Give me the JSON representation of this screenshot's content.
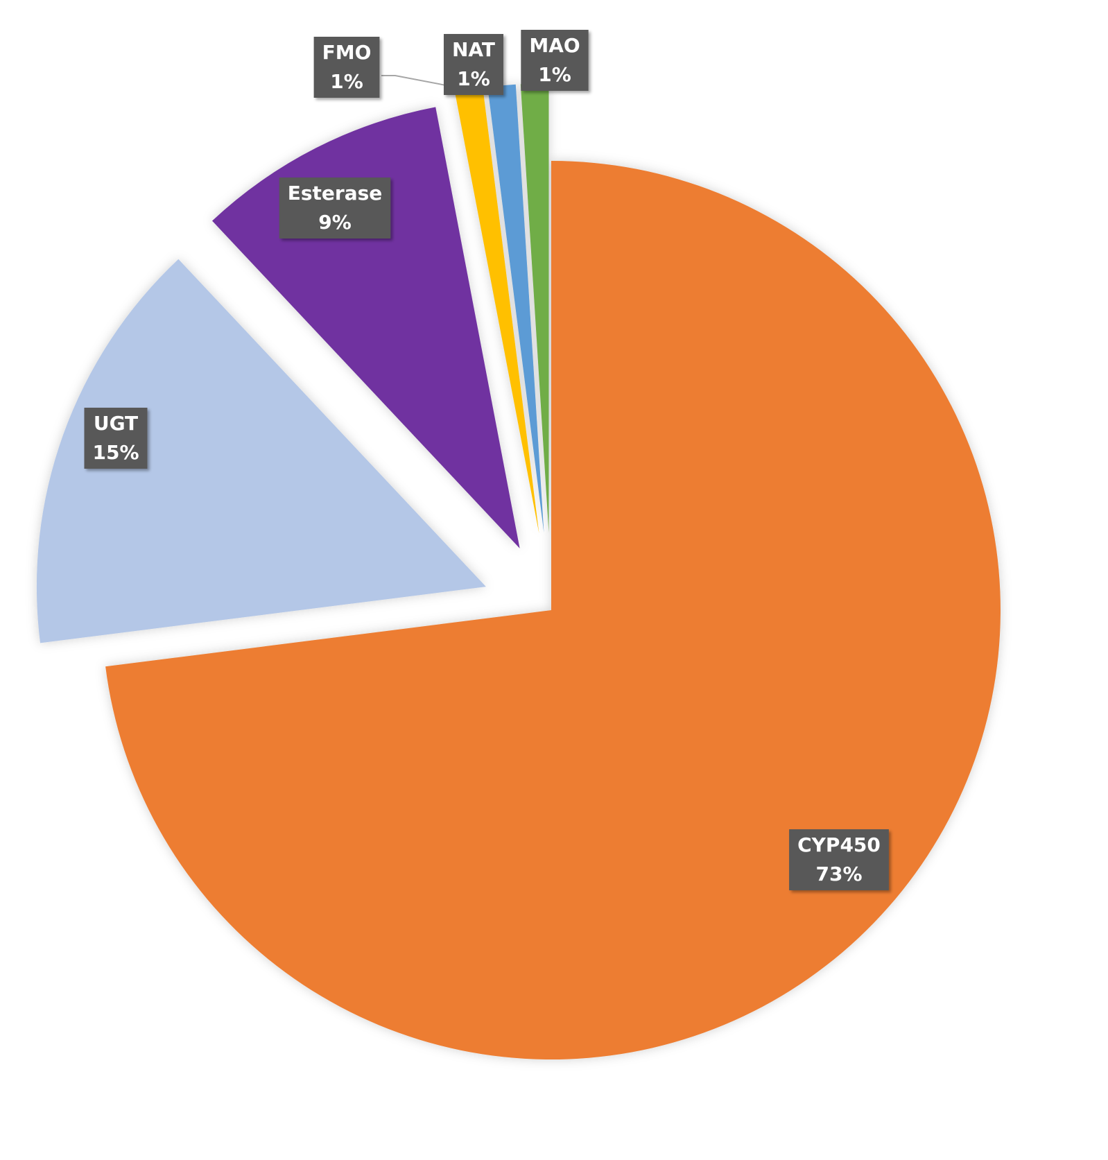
{
  "chart_data": {
    "type": "pie",
    "categories": [
      "CYP450",
      "UGT",
      "Esterase",
      "FMO",
      "NAT",
      "MAO"
    ],
    "values": [
      73,
      15,
      9,
      1,
      1,
      1
    ],
    "value_labels": [
      "73%",
      "15%",
      "9%",
      "1%",
      "1%",
      "1%"
    ],
    "colors": [
      "#ED7D31",
      "#B4C7E7",
      "#7030A0",
      "#FFC000",
      "#5B9BD5",
      "#70AD47"
    ]
  }
}
